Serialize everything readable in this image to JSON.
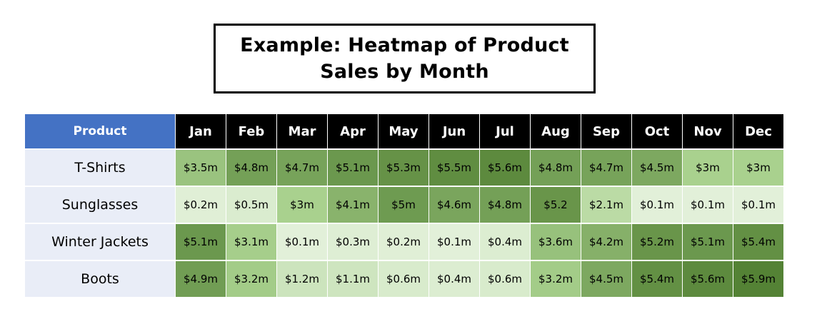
{
  "title": "Example: Heatmap of Product Sales by Month",
  "colors": {
    "header_product_bg": "#4472c4",
    "header_month_bg": "#000000",
    "row_label_bg": "#e9edf7",
    "scale": [
      "#e2f0d9",
      "#a9d18e",
      "#548235"
    ]
  },
  "chart_data": {
    "type": "heatmap",
    "row_header": "Product",
    "columns": [
      "Jan",
      "Feb",
      "Mar",
      "Apr",
      "May",
      "Jun",
      "Jul",
      "Aug",
      "Sep",
      "Oct",
      "Nov",
      "Dec"
    ],
    "rows": [
      {
        "label": "T-Shirts",
        "values": [
          3.5,
          4.8,
          4.7,
          5.1,
          5.3,
          5.5,
          5.6,
          4.8,
          4.7,
          4.5,
          3,
          3
        ],
        "display": [
          "$3.5m",
          "$4.8m",
          "$4.7m",
          "$5.1m",
          "$5.3m",
          "$5.5m",
          "$5.6m",
          "$4.8m",
          "$4.7m",
          "$4.5m",
          "$3m",
          "$3m"
        ]
      },
      {
        "label": "Sunglasses",
        "values": [
          0.2,
          0.5,
          3,
          4.1,
          5,
          4.6,
          4.8,
          5.2,
          2.1,
          0.1,
          0.1,
          0.1
        ],
        "display": [
          "$0.2m",
          "$0.5m",
          "$3m",
          "$4.1m",
          "$5m",
          "$4.6m",
          "$4.8m",
          "$5.2",
          "$2.1m",
          "$0.1m",
          "$0.1m",
          "$0.1m"
        ]
      },
      {
        "label": "Winter Jackets",
        "values": [
          5.1,
          3.1,
          0.1,
          0.3,
          0.2,
          0.1,
          0.4,
          3.6,
          4.2,
          5.2,
          5.1,
          5.4
        ],
        "display": [
          "$5.1m",
          "$3.1m",
          "$0.1m",
          "$0.3m",
          "$0.2m",
          "$0.1m",
          "$0.4m",
          "$3.6m",
          "$4.2m",
          "$5.2m",
          "$5.1m",
          "$5.4m"
        ]
      },
      {
        "label": "Boots",
        "values": [
          4.9,
          3.2,
          1.2,
          1.1,
          0.6,
          0.4,
          0.6,
          3.2,
          4.5,
          5.4,
          5.6,
          5.9
        ],
        "display": [
          "$4.9m",
          "$3.2m",
          "$1.2m",
          "$1.1m",
          "$0.6m",
          "$0.4m",
          "$0.6m",
          "$3.2m",
          "$4.5m",
          "$5.4m",
          "$5.6m",
          "$5.9m"
        ]
      }
    ]
  }
}
